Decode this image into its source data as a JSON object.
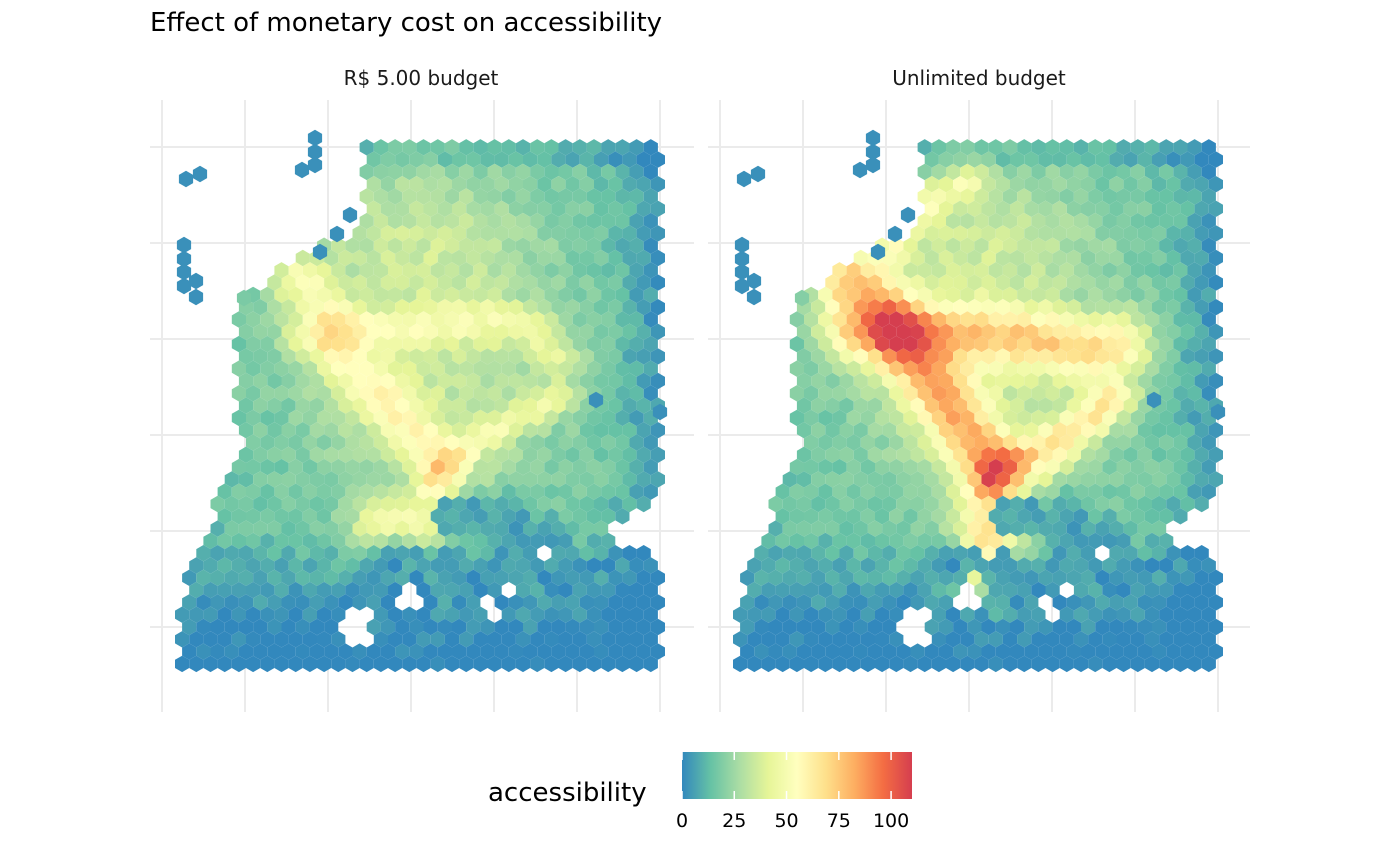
{
  "chart_data": {
    "type": "heatmap",
    "title": "Effect of monetary cost on accessibility",
    "facets": [
      {
        "label": "R$ 5.00 budget",
        "mode": "limited"
      },
      {
        "label": "Unlimited budget",
        "mode": "unlimited"
      }
    ],
    "geometry": "hexagon",
    "grid": true,
    "axis_tick_labels_visible": false,
    "legend": {
      "title": "accessibility",
      "position": "bottom",
      "range": [
        0,
        110
      ],
      "ticks": [
        0,
        25,
        50,
        75,
        100
      ],
      "colors": [
        "#3288bd",
        "#66c2a5",
        "#abdda4",
        "#e6f598",
        "#ffffbf",
        "#fee08b",
        "#fdae61",
        "#f46d43",
        "#d53e4f"
      ]
    },
    "value_summary": {
      "R$ 5.00 budget": {
        "min": 0,
        "max": 80
      },
      "Unlimited budget": {
        "min": 0,
        "max": 105
      }
    }
  }
}
